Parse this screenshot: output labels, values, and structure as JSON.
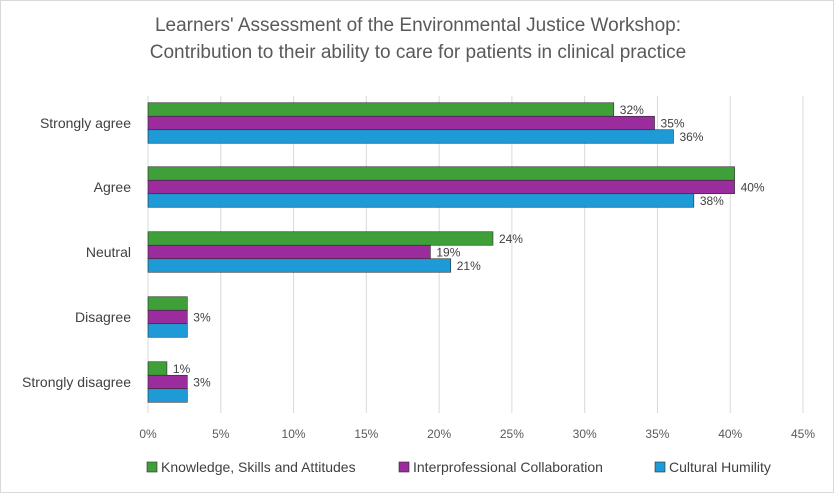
{
  "chart_data": {
    "type": "bar",
    "orientation": "horizontal",
    "title": "Learners' Assessment  of the Environmental Justice Workshop:\nContribution to their ability to care for patients in clinical practice",
    "categories": [
      "Strongly agree",
      "Agree",
      "Neutral",
      "Disagree",
      "Strongly disagree"
    ],
    "series": [
      {
        "name": "Knowledge, Skills and Attitudes",
        "color": "#3fa03a",
        "values": [
          32,
          40.3,
          23.7,
          2.7,
          1.3
        ],
        "labels": [
          "32%",
          "",
          "24%",
          "",
          "1%"
        ]
      },
      {
        "name": "Interprofessional Collaboration",
        "color": "#9b2c9e",
        "values": [
          34.8,
          40.3,
          19.4,
          2.7,
          2.7
        ],
        "labels": [
          "35%",
          "40%",
          "19%",
          "3%",
          "3%"
        ]
      },
      {
        "name": "Cultural Humility",
        "color": "#1e9bd7",
        "values": [
          36.1,
          37.5,
          20.8,
          2.7,
          2.7
        ],
        "labels": [
          "36%",
          "38%",
          "21%",
          "",
          ""
        ]
      }
    ],
    "xlim": [
      0,
      45
    ],
    "xticks": [
      "0%",
      "5%",
      "10%",
      "15%",
      "20%",
      "25%",
      "30%",
      "35%",
      "40%",
      "45%"
    ],
    "grid": true,
    "legend": "bottom"
  }
}
